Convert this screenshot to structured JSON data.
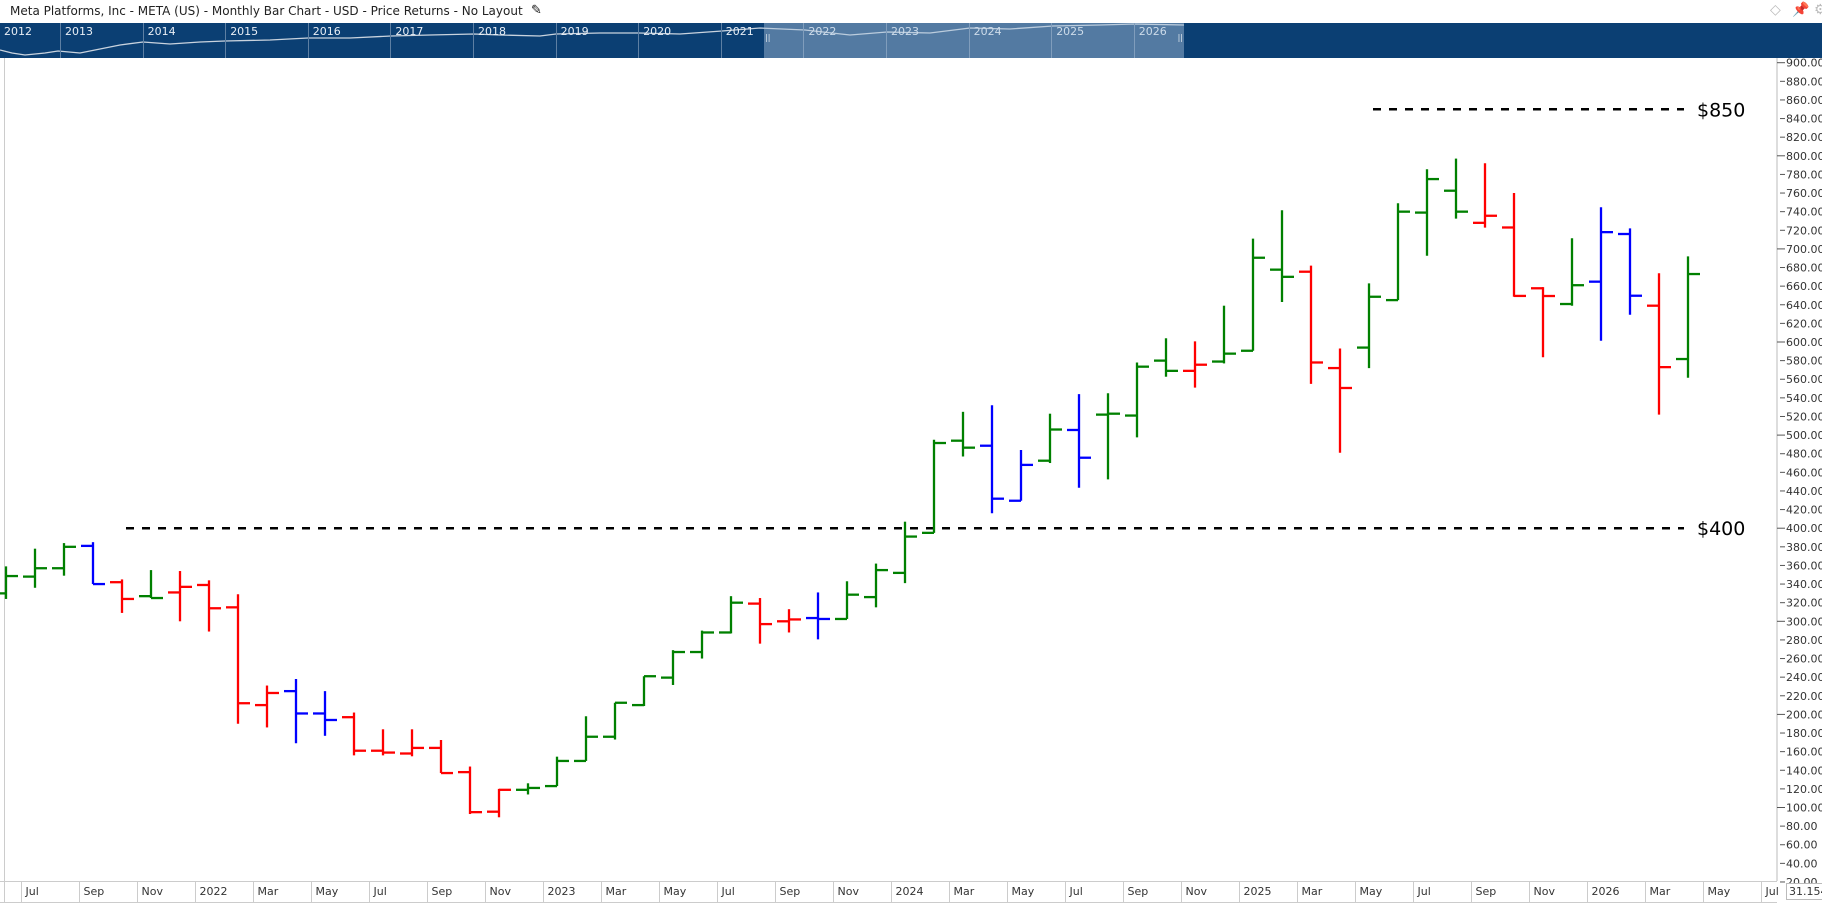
{
  "header": {
    "title": "Meta Platforms, Inc - META (US) - Monthly Bar Chart - USD - Price Returns - No Layout",
    "edit_icon": "pencil-icon",
    "right_icons": [
      "diamond-icon",
      "pin-icon",
      "settings-icon"
    ]
  },
  "navigator": {
    "years": [
      "2012",
      "2013",
      "2014",
      "2015",
      "2016",
      "2017",
      "2018",
      "2019",
      "2020",
      "2021",
      "2022",
      "2023",
      "2024",
      "2025",
      "2026"
    ]
  },
  "corner_readout": "31.154",
  "colors": {
    "green": "#008000",
    "red": "#ff0000",
    "blue": "#0000ff",
    "navigator_bg": "#0b3f73",
    "annotation": "#000000"
  },
  "chart_data": {
    "type": "ohlc-bar",
    "interval": "monthly",
    "ylim": [
      20,
      900
    ],
    "y_scale": "linear",
    "y_ticks": [
      "900.00",
      "880.00",
      "860.00",
      "840.00",
      "820.00",
      "800.00",
      "780.00",
      "760.00",
      "740.00",
      "720.00",
      "700.00",
      "680.00",
      "660.00",
      "640.00",
      "620.00",
      "600.00",
      "580.00",
      "560.00",
      "540.00",
      "520.00",
      "500.00",
      "480.00",
      "460.00",
      "440.00",
      "420.00",
      "400.00",
      "380.00",
      "360.00",
      "340.00",
      "320.00",
      "300.00",
      "280.00",
      "260.00",
      "240.00",
      "220.00",
      "200.00",
      "180.00",
      "160.00",
      "140.00",
      "120.00",
      "100.00",
      "80.00",
      "60.00",
      "40.00",
      "20.00"
    ],
    "x_ticks": [
      "Jul",
      "Sep",
      "Nov",
      "2022",
      "Mar",
      "May",
      "Jul",
      "Sep",
      "Nov",
      "2023",
      "Mar",
      "May",
      "Jul",
      "Sep",
      "Nov",
      "2024",
      "Mar",
      "May",
      "Jul",
      "Sep",
      "Nov",
      "2025",
      "Mar",
      "May",
      "Jul",
      "Sep",
      "Nov",
      "2026",
      "Mar",
      "May",
      "Jul"
    ],
    "grid": false,
    "annotations": [
      {
        "label": "$850",
        "value": 850,
        "style": "dashed",
        "from": "2025-05"
      },
      {
        "label": "$400",
        "value": 400,
        "style": "dashed",
        "from": "2021-10"
      }
    ],
    "bars": [
      {
        "month": "2021-06",
        "open": 330,
        "high": 359,
        "low": 324,
        "close": 348.6,
        "color": "green"
      },
      {
        "month": "2021-07",
        "open": 348,
        "high": 378,
        "low": 336,
        "close": 357,
        "color": "green"
      },
      {
        "month": "2021-08",
        "open": 357,
        "high": 384,
        "low": 349,
        "close": 380,
        "color": "green"
      },
      {
        "month": "2021-09",
        "open": 381,
        "high": 385,
        "low": 340,
        "close": 340,
        "color": "blue"
      },
      {
        "month": "2021-10",
        "open": 342,
        "high": 345,
        "low": 309,
        "close": 324,
        "color": "red"
      },
      {
        "month": "2021-11",
        "open": 327,
        "high": 355,
        "low": 325,
        "close": 325,
        "color": "green"
      },
      {
        "month": "2021-12",
        "open": 331,
        "high": 354,
        "low": 300,
        "close": 337,
        "color": "red"
      },
      {
        "month": "2022-01",
        "open": 339,
        "high": 344,
        "low": 289,
        "close": 314,
        "color": "red"
      },
      {
        "month": "2022-02",
        "open": 315,
        "high": 329,
        "low": 190,
        "close": 212,
        "color": "red"
      },
      {
        "month": "2022-03",
        "open": 210,
        "high": 231,
        "low": 186,
        "close": 223,
        "color": "red"
      },
      {
        "month": "2022-04",
        "open": 225,
        "high": 238,
        "low": 169,
        "close": 201,
        "color": "blue"
      },
      {
        "month": "2022-05",
        "open": 201,
        "high": 225,
        "low": 177,
        "close": 194,
        "color": "blue"
      },
      {
        "month": "2022-06",
        "open": 197,
        "high": 202,
        "low": 156,
        "close": 161,
        "color": "red"
      },
      {
        "month": "2022-07",
        "open": 161,
        "high": 184,
        "low": 156,
        "close": 159,
        "color": "red"
      },
      {
        "month": "2022-08",
        "open": 158,
        "high": 184,
        "low": 155,
        "close": 164,
        "color": "red"
      },
      {
        "month": "2022-09",
        "open": 164,
        "high": 172.5,
        "low": 137,
        "close": 137,
        "color": "red"
      },
      {
        "month": "2022-10",
        "open": 138,
        "high": 144,
        "low": 93,
        "close": 95,
        "color": "red"
      },
      {
        "month": "2022-11",
        "open": 95.5,
        "high": 120,
        "low": 89.5,
        "close": 119,
        "color": "red"
      },
      {
        "month": "2022-12",
        "open": 119,
        "high": 126,
        "low": 114,
        "close": 121,
        "color": "green"
      },
      {
        "month": "2023-01",
        "open": 123,
        "high": 154.6,
        "low": 123,
        "close": 150,
        "color": "green"
      },
      {
        "month": "2023-02",
        "open": 150,
        "high": 198,
        "low": 150,
        "close": 176,
        "color": "green"
      },
      {
        "month": "2023-03",
        "open": 176,
        "high": 212.5,
        "low": 173,
        "close": 212.5,
        "color": "green"
      },
      {
        "month": "2023-04",
        "open": 210,
        "high": 241,
        "low": 209,
        "close": 241,
        "color": "green"
      },
      {
        "month": "2023-05",
        "open": 239.5,
        "high": 269,
        "low": 231.6,
        "close": 267,
        "color": "green"
      },
      {
        "month": "2023-06",
        "open": 267,
        "high": 290,
        "low": 260,
        "close": 288,
        "color": "green"
      },
      {
        "month": "2023-07",
        "open": 288,
        "high": 327,
        "low": 287,
        "close": 320,
        "color": "green"
      },
      {
        "month": "2023-08",
        "open": 319,
        "high": 325,
        "low": 276,
        "close": 297,
        "color": "red"
      },
      {
        "month": "2023-09",
        "open": 300,
        "high": 313,
        "low": 288,
        "close": 302,
        "color": "red"
      },
      {
        "month": "2023-10",
        "open": 303.5,
        "high": 331,
        "low": 280.6,
        "close": 302.5,
        "color": "blue"
      },
      {
        "month": "2023-11",
        "open": 302.5,
        "high": 343,
        "low": 302.5,
        "close": 328.6,
        "color": "green"
      },
      {
        "month": "2023-12",
        "open": 326,
        "high": 362,
        "low": 315,
        "close": 355,
        "color": "green"
      },
      {
        "month": "2024-01",
        "open": 352,
        "high": 407,
        "low": 341,
        "close": 391,
        "color": "green"
      },
      {
        "month": "2024-02",
        "open": 395,
        "high": 495,
        "low": 395,
        "close": 491.5,
        "color": "green"
      },
      {
        "month": "2024-03",
        "open": 494,
        "high": 525,
        "low": 477,
        "close": 486.5,
        "color": "green"
      },
      {
        "month": "2024-04",
        "open": 488.6,
        "high": 532,
        "low": 416,
        "close": 431.7,
        "color": "blue"
      },
      {
        "month": "2024-05",
        "open": 429.5,
        "high": 484,
        "low": 429.5,
        "close": 468,
        "color": "blue"
      },
      {
        "month": "2024-06",
        "open": 472.5,
        "high": 523,
        "low": 470,
        "close": 506,
        "color": "green"
      },
      {
        "month": "2024-07",
        "open": 505.5,
        "high": 544,
        "low": 443.5,
        "close": 475.7,
        "color": "blue"
      },
      {
        "month": "2024-08",
        "open": 522,
        "high": 545,
        "low": 452.5,
        "close": 523,
        "color": "green"
      },
      {
        "month": "2024-09",
        "open": 521,
        "high": 578,
        "low": 497.6,
        "close": 573.5,
        "color": "green"
      },
      {
        "month": "2024-10",
        "open": 580,
        "high": 604,
        "low": 562.7,
        "close": 569,
        "color": "green"
      },
      {
        "month": "2024-11",
        "open": 569,
        "high": 600.7,
        "low": 551,
        "close": 575.6,
        "color": "red"
      },
      {
        "month": "2024-12",
        "open": 579,
        "high": 639,
        "low": 577,
        "close": 587.5,
        "color": "green"
      },
      {
        "month": "2025-01",
        "open": 590.6,
        "high": 711,
        "low": 590.6,
        "close": 690.5,
        "color": "green"
      },
      {
        "month": "2025-02",
        "open": 677.7,
        "high": 741.5,
        "low": 643,
        "close": 670,
        "color": "green"
      },
      {
        "month": "2025-03",
        "open": 675.5,
        "high": 682,
        "low": 555,
        "close": 578,
        "color": "red"
      },
      {
        "month": "2025-04",
        "open": 572,
        "high": 593,
        "low": 481,
        "close": 550.6,
        "color": "red"
      },
      {
        "month": "2025-05",
        "open": 594,
        "high": 663,
        "low": 572,
        "close": 648.6,
        "color": "green"
      },
      {
        "month": "2025-06",
        "open": 645,
        "high": 749,
        "low": 645,
        "close": 740,
        "color": "green"
      },
      {
        "month": "2025-07",
        "open": 739,
        "high": 785.5,
        "low": 692.7,
        "close": 775,
        "color": "green"
      },
      {
        "month": "2025-08",
        "open": 762.5,
        "high": 797,
        "low": 732.5,
        "close": 740,
        "color": "green"
      },
      {
        "month": "2025-09",
        "open": 728,
        "high": 792,
        "low": 722.8,
        "close": 735.6,
        "color": "red"
      },
      {
        "month": "2025-10",
        "open": 723,
        "high": 760,
        "low": 648.6,
        "close": 649.5,
        "color": "red"
      },
      {
        "month": "2025-11",
        "open": 657.7,
        "high": 659,
        "low": 583.6,
        "close": 649.4,
        "color": "red"
      },
      {
        "month": "2025-12",
        "open": 640.8,
        "high": 711.4,
        "low": 639,
        "close": 661,
        "color": "green"
      },
      {
        "month": "2026-01",
        "open": 664.8,
        "high": 744.7,
        "low": 601.4,
        "close": 718,
        "color": "blue"
      },
      {
        "month": "2026-02",
        "open": 716,
        "high": 722,
        "low": 629.3,
        "close": 649.7,
        "color": "blue"
      },
      {
        "month": "2026-03",
        "open": 639,
        "high": 673.8,
        "low": 522,
        "close": 573,
        "color": "red"
      },
      {
        "month": "2026-04",
        "open": 581.7,
        "high": 692,
        "low": 561.6,
        "close": 673,
        "color": "green"
      }
    ]
  }
}
